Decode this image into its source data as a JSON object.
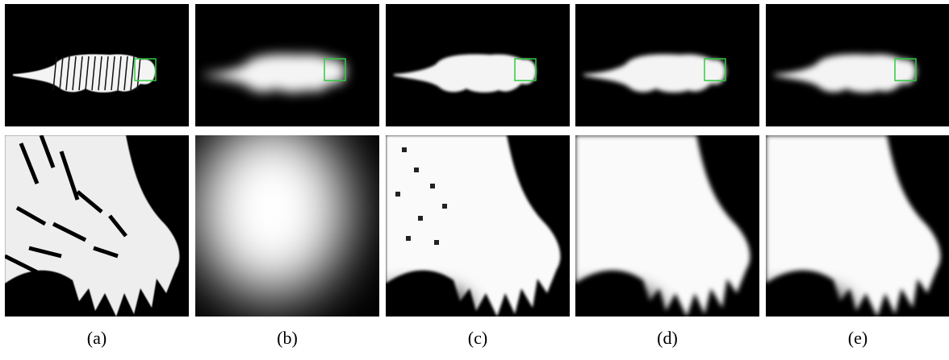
{
  "panels": [
    {
      "caption": "(a)"
    },
    {
      "caption": "(b)"
    },
    {
      "caption": "(c)"
    },
    {
      "caption": "(d)"
    },
    {
      "caption": "(e)"
    }
  ]
}
